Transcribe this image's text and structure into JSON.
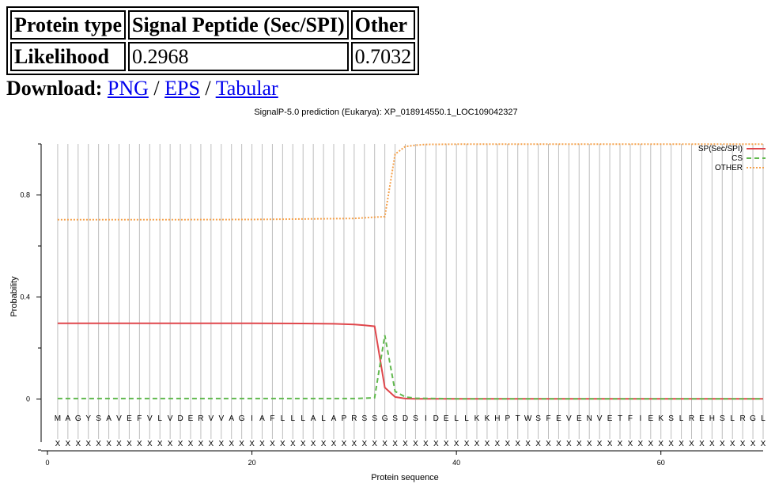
{
  "table": {
    "headers": [
      "Protein type",
      "Signal Peptide (Sec/SPI)",
      "Other"
    ],
    "row_label": "Likelihood",
    "values": [
      "0.2968",
      "0.7032"
    ]
  },
  "download": {
    "label": "Download:",
    "links": [
      "PNG",
      "EPS",
      "Tabular"
    ],
    "separator": "/"
  },
  "chart_data": {
    "type": "line",
    "title": "SignalP-5.0 prediction (Eukarya):  XP_018914550.1_LOC109042327",
    "xlabel": "Protein sequence",
    "ylabel": "Probability",
    "xlim": [
      0,
      70
    ],
    "ylim": [
      -0.2,
      1.0
    ],
    "x_ticks": [
      0,
      20,
      40,
      60
    ],
    "y_ticks": [
      0,
      0.4,
      0.8
    ],
    "y_tick_labels": [
      "0",
      "0.4",
      "0.8"
    ],
    "grid": "vertical lines at each residue",
    "legend_position": "top-right",
    "sequence": [
      "M",
      "A",
      "G",
      "Y",
      "S",
      "A",
      "V",
      "E",
      "F",
      "V",
      "L",
      "V",
      "D",
      "E",
      "R",
      "V",
      "V",
      "A",
      "G",
      "I",
      "A",
      "F",
      "L",
      "L",
      "L",
      "A",
      "L",
      "A",
      "P",
      "R",
      "S",
      "S",
      "G",
      "S",
      "D",
      "S",
      "I",
      "D",
      "E",
      "L",
      "L",
      "K",
      "K",
      "H",
      "P",
      "T",
      "W",
      "S",
      "F",
      "E",
      "V",
      "E",
      "N",
      "V",
      "E",
      "T",
      "F",
      "I",
      "E",
      "K",
      "S",
      "L",
      "R",
      "E",
      "H",
      "S",
      "L",
      "R",
      "G",
      "L"
    ],
    "region_marker": "X",
    "series": [
      {
        "name": "SP(Sec/SPI)",
        "color": "#e0474c",
        "style": "solid",
        "points": [
          [
            1,
            0.297
          ],
          [
            10,
            0.297
          ],
          [
            20,
            0.297
          ],
          [
            25,
            0.296
          ],
          [
            28,
            0.295
          ],
          [
            30,
            0.292
          ],
          [
            31,
            0.289
          ],
          [
            32,
            0.285
          ],
          [
            33,
            0.045
          ],
          [
            34,
            0.008
          ],
          [
            35,
            0.002
          ],
          [
            36,
            0.001
          ],
          [
            40,
            0.001
          ],
          [
            50,
            0.001
          ],
          [
            60,
            0.001
          ],
          [
            70,
            0.001
          ]
        ]
      },
      {
        "name": "CS",
        "color": "#61b94e",
        "style": "dashed",
        "points": [
          [
            1,
            0.002
          ],
          [
            10,
            0.002
          ],
          [
            20,
            0.002
          ],
          [
            30,
            0.002
          ],
          [
            31,
            0.003
          ],
          [
            32,
            0.005
          ],
          [
            33,
            0.25
          ],
          [
            34,
            0.03
          ],
          [
            35,
            0.008
          ],
          [
            36,
            0.003
          ],
          [
            40,
            0.001
          ],
          [
            50,
            0.001
          ],
          [
            60,
            0.001
          ],
          [
            70,
            0.001
          ]
        ]
      },
      {
        "name": "OTHER",
        "color": "#f5a14b",
        "style": "dotted",
        "points": [
          [
            1,
            0.703
          ],
          [
            10,
            0.703
          ],
          [
            20,
            0.704
          ],
          [
            30,
            0.708
          ],
          [
            32,
            0.713
          ],
          [
            33,
            0.715
          ],
          [
            34,
            0.96
          ],
          [
            35,
            0.99
          ],
          [
            36,
            0.995
          ],
          [
            37,
            0.998
          ],
          [
            40,
            0.999
          ],
          [
            50,
            0.999
          ],
          [
            60,
            0.999
          ],
          [
            70,
            0.999
          ]
        ]
      }
    ]
  }
}
